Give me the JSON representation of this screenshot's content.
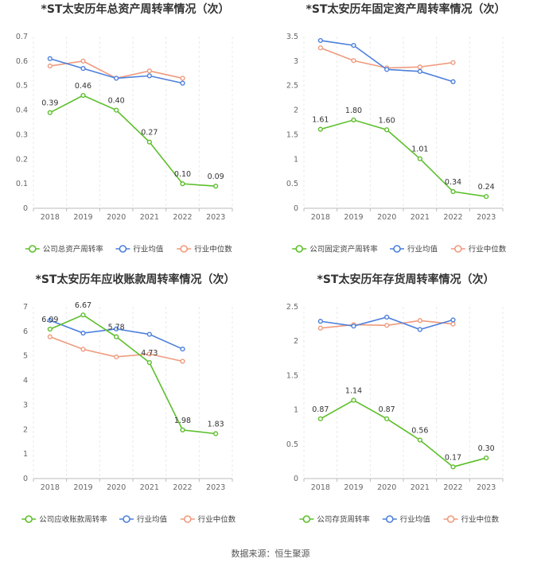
{
  "source_text": "数据来源：恒生聚源",
  "colors": {
    "company": "#5cbf2a",
    "industry_avg": "#4c7fdc",
    "industry_median": "#ef9a7c",
    "axis": "#bbbbbb",
    "grid": "#e8e8e8"
  },
  "chart_data": [
    {
      "type": "line",
      "title": "*ST太安历年总资产周转率情况（次）",
      "categories": [
        "2018",
        "2019",
        "2020",
        "2021",
        "2022",
        "2023"
      ],
      "ylim": [
        0,
        0.7
      ],
      "yticks": [
        "0",
        "0.1",
        "0.2",
        "0.3",
        "0.4",
        "0.5",
        "0.6",
        "0.7"
      ],
      "grid": "vertical dashed",
      "legend": "bottom",
      "series": [
        {
          "name": "公司总资产周转率",
          "color_key": "company",
          "values": [
            0.39,
            0.46,
            0.4,
            0.27,
            0.1,
            0.09
          ],
          "labels": [
            "0.39",
            "0.46",
            "0.40",
            "0.27",
            "0.10",
            "0.09"
          ]
        },
        {
          "name": "行业均值",
          "color_key": "industry_avg",
          "values": [
            0.61,
            0.57,
            0.53,
            0.54,
            0.51,
            null
          ],
          "labels": []
        },
        {
          "name": "行业中位数",
          "color_key": "industry_median",
          "values": [
            0.58,
            0.6,
            0.53,
            0.56,
            0.53,
            null
          ],
          "labels": []
        }
      ]
    },
    {
      "type": "line",
      "title": "*ST太安历年固定资产周转率情况（次）",
      "categories": [
        "2018",
        "2019",
        "2020",
        "2021",
        "2022",
        "2023"
      ],
      "ylim": [
        0,
        3.5
      ],
      "yticks": [
        "0",
        "0.5",
        "1",
        "1.5",
        "2",
        "2.5",
        "3",
        "3.5"
      ],
      "grid": "vertical dashed",
      "legend": "bottom",
      "series": [
        {
          "name": "公司固定资产周转率",
          "color_key": "company",
          "values": [
            1.61,
            1.8,
            1.6,
            1.01,
            0.34,
            0.24
          ],
          "labels": [
            "1.61",
            "1.80",
            "1.60",
            "1.01",
            "0.34",
            "0.24"
          ]
        },
        {
          "name": "行业均值",
          "color_key": "industry_avg",
          "values": [
            3.42,
            3.32,
            2.83,
            2.79,
            2.58,
            null
          ],
          "labels": []
        },
        {
          "name": "行业中位数",
          "color_key": "industry_median",
          "values": [
            3.27,
            3.01,
            2.86,
            2.88,
            2.97,
            null
          ],
          "labels": []
        }
      ]
    },
    {
      "type": "line",
      "title": "*ST太安历年应收账款周转率情况（次）",
      "categories": [
        "2018",
        "2019",
        "2020",
        "2021",
        "2022",
        "2023"
      ],
      "ylim": [
        0,
        7
      ],
      "yticks": [
        "0",
        "1",
        "2",
        "3",
        "4",
        "5",
        "6",
        "7"
      ],
      "grid": "vertical dashed",
      "legend": "bottom",
      "series": [
        {
          "name": "公司应收账款周转率",
          "color_key": "company",
          "values": [
            6.09,
            6.67,
            5.78,
            4.73,
            1.98,
            1.83
          ],
          "labels": [
            "6.09",
            "6.67",
            "5.78",
            "4.73",
            "1.98",
            "1.83"
          ]
        },
        {
          "name": "行业均值",
          "color_key": "industry_avg",
          "values": [
            6.45,
            5.93,
            6.1,
            5.88,
            5.28,
            null
          ],
          "labels": []
        },
        {
          "name": "行业中位数",
          "color_key": "industry_median",
          "values": [
            5.78,
            5.27,
            4.96,
            5.08,
            4.78,
            null
          ],
          "labels": []
        }
      ]
    },
    {
      "type": "line",
      "title": "*ST太安历年存货周转率情况（次）",
      "categories": [
        "2018",
        "2019",
        "2020",
        "2021",
        "2022",
        "2023"
      ],
      "ylim": [
        0,
        2.5
      ],
      "yticks": [
        "0",
        "0.5",
        "1",
        "1.5",
        "2",
        "2.5"
      ],
      "grid": "vertical dashed",
      "legend": "bottom",
      "series": [
        {
          "name": "公司存货周转率",
          "color_key": "company",
          "values": [
            0.87,
            1.14,
            0.87,
            0.56,
            0.17,
            0.3
          ],
          "labels": [
            "0.87",
            "1.14",
            "0.87",
            "0.56",
            "0.17",
            "0.30"
          ]
        },
        {
          "name": "行业均值",
          "color_key": "industry_avg",
          "values": [
            2.29,
            2.22,
            2.35,
            2.17,
            2.31,
            null
          ],
          "labels": []
        },
        {
          "name": "行业中位数",
          "color_key": "industry_median",
          "values": [
            2.19,
            2.24,
            2.23,
            2.3,
            2.25,
            null
          ],
          "labels": []
        }
      ]
    }
  ]
}
